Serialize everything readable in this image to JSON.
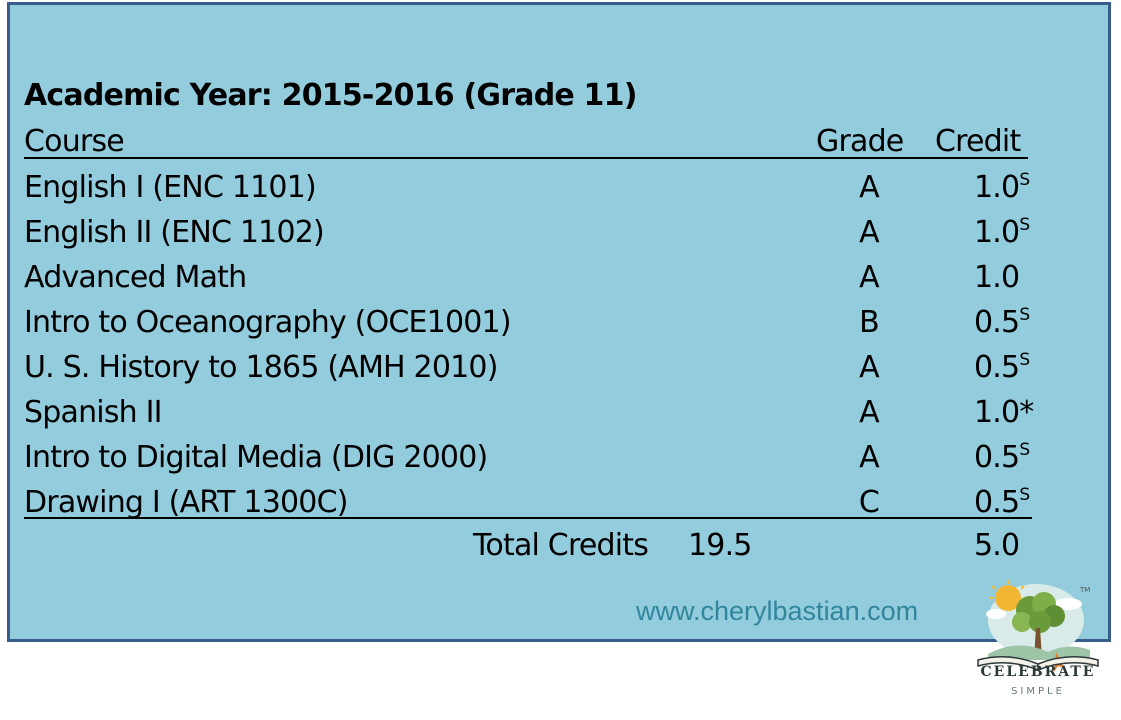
{
  "title": "Academic Year: 2015-2016 (Grade 11)",
  "header": {
    "course": "Course",
    "grade": "Grade",
    "credit": "Credit"
  },
  "courses": [
    {
      "course": "English I (ENC 1101)",
      "grade": "A",
      "credit": "1.0",
      "mark": "S"
    },
    {
      "course": "English II (ENC 1102)",
      "grade": "A",
      "credit": "1.0",
      "mark": "S"
    },
    {
      "course": "Advanced Math",
      "grade": "A",
      "credit": "1.0",
      "mark": ""
    },
    {
      "course": "Intro to Oceanography (OCE1001)",
      "grade": "B",
      "credit": "0.5",
      "mark": "S"
    },
    {
      "course": "U. S. History to 1865 (AMH 2010)",
      "grade": "A",
      "credit": "0.5",
      "mark": "S"
    },
    {
      "course": "Spanish II",
      "grade": "A",
      "credit": "1.0*",
      "mark": ""
    },
    {
      "course": "Intro to Digital Media (DIG 2000)",
      "grade": "A",
      "credit": "0.5",
      "mark": "S"
    },
    {
      "course": "Drawing I (ART 1300C)",
      "grade": "C",
      "credit": "0.5",
      "mark": "S"
    }
  ],
  "totals": {
    "label": "Total Credits",
    "cumulative": "19.5",
    "year_credit": "5.0"
  },
  "website": "www.cherylbastian.com",
  "logo": {
    "name": "CELEBRATE",
    "tagline": "SIMPLE",
    "tm": "TM",
    "icon": "tree-on-book-icon"
  },
  "colors": {
    "panel": "#93cddd",
    "border": "#385d8a",
    "url": "#31859c"
  }
}
